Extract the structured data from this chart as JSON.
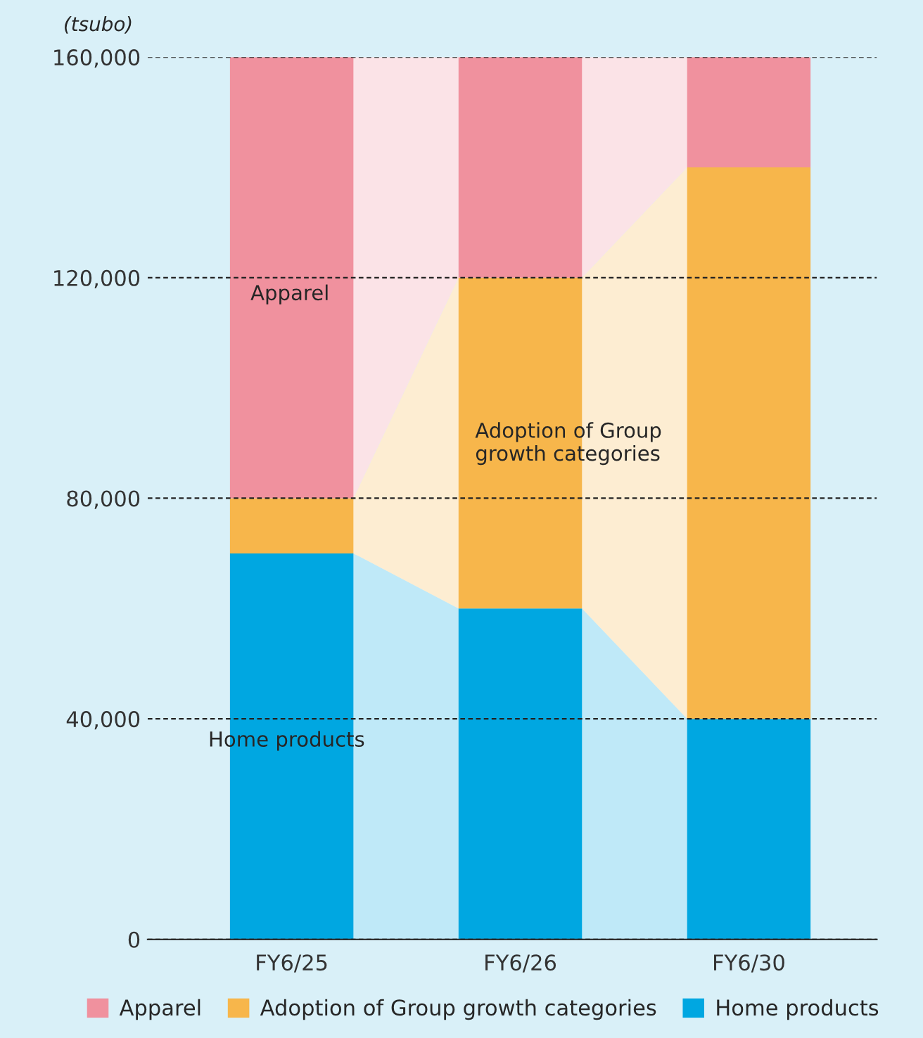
{
  "chart_data": {
    "type": "bar",
    "stacked": true,
    "ylabel": "(tsubo)",
    "categories": [
      "FY6/25",
      "FY6/26",
      "FY6/30"
    ],
    "series": [
      {
        "name": "Home products",
        "color": "#00a7e1",
        "values": [
          70000,
          60000,
          40000
        ]
      },
      {
        "name": "Adoption of Group growth categories",
        "color": "#f7b64b",
        "values": [
          10000,
          60000,
          100000
        ]
      },
      {
        "name": "Apparel",
        "color": "#f0919e",
        "values": [
          80000,
          40000,
          20000
        ]
      }
    ],
    "ylim": [
      0,
      160000
    ],
    "yticks": [
      {
        "value": 0,
        "label": "0"
      },
      {
        "value": 40000,
        "label": "40,000"
      },
      {
        "value": 80000,
        "label": "80,000"
      },
      {
        "value": 120000,
        "label": "120,000"
      },
      {
        "value": 160000,
        "label": "160,000"
      }
    ],
    "grid": "y",
    "legend": "bottom",
    "annotations": [
      "Apparel",
      "Adoption of Group\ngrowth categories",
      "Home products"
    ]
  }
}
